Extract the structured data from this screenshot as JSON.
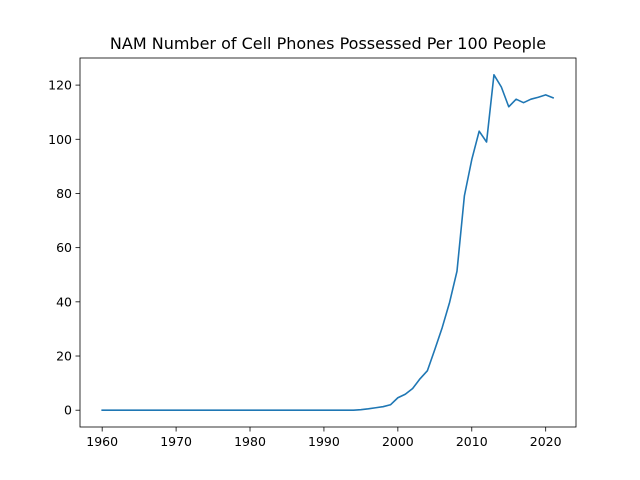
{
  "chart_data": {
    "type": "line",
    "title": "NAM Number of Cell Phones Possessed Per 100 People",
    "xlabel": "",
    "ylabel": "",
    "xlim": [
      1957,
      2024.1
    ],
    "ylim": [
      -6.2,
      130
    ],
    "xticks": [
      1960,
      1970,
      1980,
      1990,
      2000,
      2010,
      2020
    ],
    "yticks": [
      0,
      20,
      40,
      60,
      80,
      100,
      120
    ],
    "grid": false,
    "line_color": "#1f77b4",
    "series": [
      {
        "x": [
          1960,
          1961,
          1962,
          1963,
          1964,
          1965,
          1966,
          1967,
          1968,
          1969,
          1970,
          1971,
          1972,
          1973,
          1974,
          1975,
          1976,
          1977,
          1978,
          1979,
          1980,
          1981,
          1982,
          1983,
          1984,
          1985,
          1986,
          1987,
          1988,
          1989,
          1990,
          1991,
          1992,
          1993,
          1994,
          1995,
          1996,
          1997,
          1998,
          1999,
          2000,
          2001,
          2002,
          2003,
          2004,
          2005,
          2006,
          2007,
          2008,
          2009,
          2010,
          2011,
          2012,
          2013,
          2014,
          2015,
          2016,
          2017,
          2018,
          2019,
          2020,
          2021
        ],
        "values": [
          0,
          0,
          0,
          0,
          0,
          0,
          0,
          0,
          0,
          0,
          0,
          0,
          0,
          0,
          0,
          0,
          0,
          0,
          0,
          0,
          0,
          0,
          0,
          0,
          0,
          0,
          0,
          0,
          0,
          0,
          0,
          0,
          0,
          0,
          0,
          0.2,
          0.5,
          0.9,
          1.3,
          2,
          4.6,
          5.9,
          8,
          11.6,
          14.6,
          22.4,
          30.5,
          39.8,
          51.3,
          79.1,
          92.5,
          103,
          99,
          123.8,
          119.3,
          112,
          114.8,
          113.5,
          114.8,
          115.5,
          116.4,
          115.3
        ]
      }
    ]
  }
}
